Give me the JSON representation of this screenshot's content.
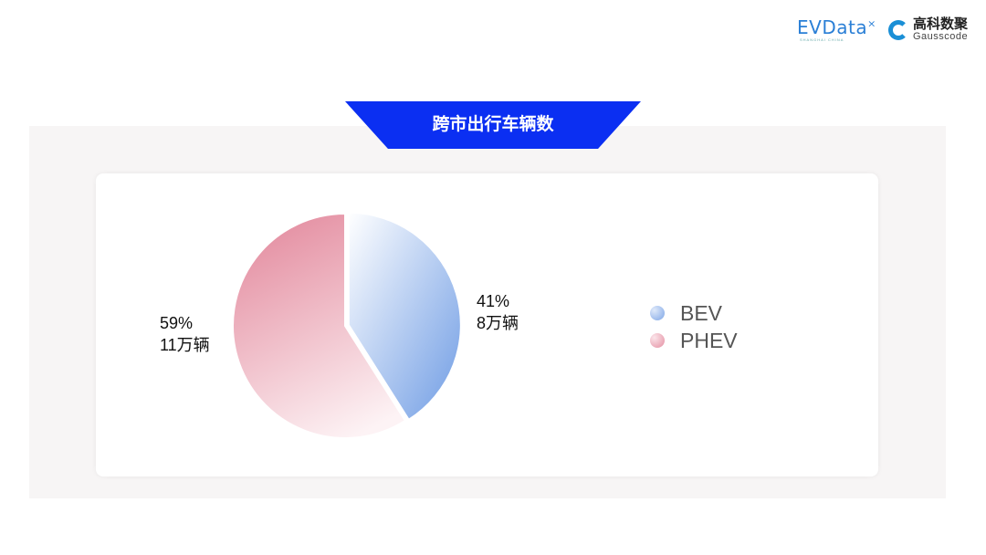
{
  "logos": {
    "evdata": "EVData",
    "evdata_sub": "SHANGHAI CHINA",
    "gausscode_cn": "高科数聚",
    "gausscode_en": "Gausscode"
  },
  "title": "跨市出行车辆数",
  "colors": {
    "banner": "#0b2ff2",
    "bev": "#7ea6e6",
    "phev": "#e48fa2"
  },
  "chart_data": {
    "type": "pie",
    "title": "跨市出行车辆数",
    "slices": [
      {
        "name": "BEV",
        "percent": 41,
        "value_label": "8万辆",
        "pct_label": "41%"
      },
      {
        "name": "PHEV",
        "percent": 59,
        "value_label": "11万辆",
        "pct_label": "59%"
      }
    ],
    "legend": [
      "BEV",
      "PHEV"
    ],
    "legend_position": "right"
  }
}
